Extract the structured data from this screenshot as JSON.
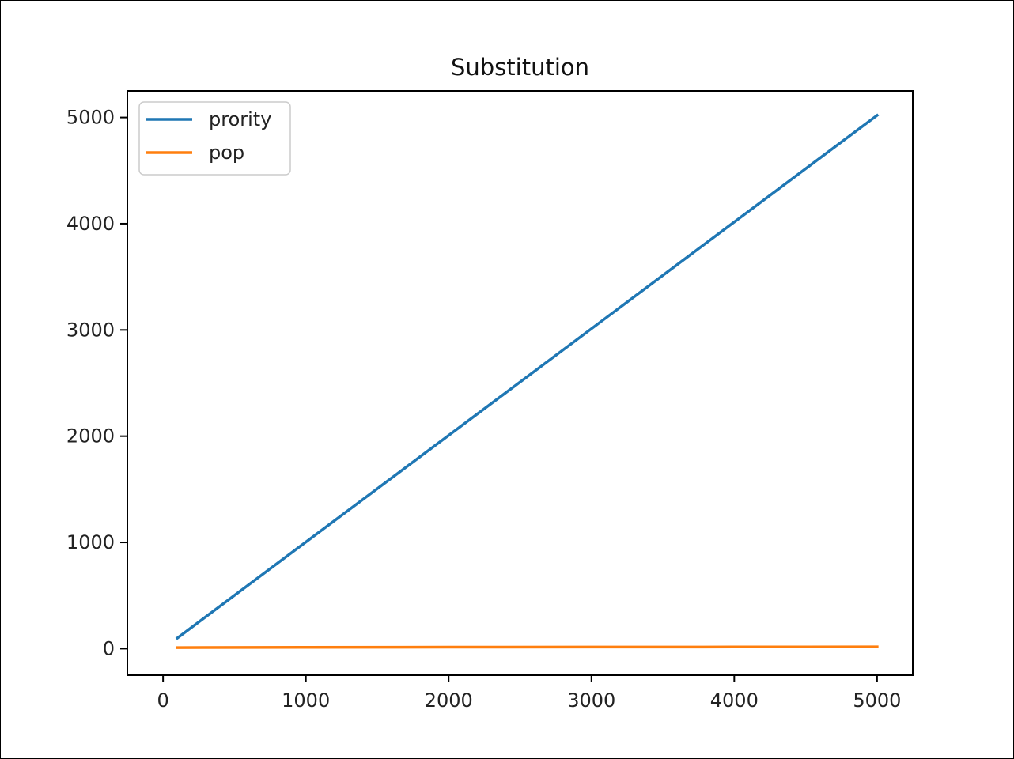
{
  "chart_data": {
    "type": "line",
    "title": "Substitution",
    "xlabel": "",
    "ylabel": "",
    "xlim": [
      -250,
      5250
    ],
    "ylim": [
      -250,
      5250
    ],
    "x_ticks": [
      0,
      1000,
      2000,
      3000,
      4000,
      5000
    ],
    "y_ticks": [
      0,
      1000,
      2000,
      3000,
      4000,
      5000
    ],
    "x_tick_labels": [
      "0",
      "1000",
      "2000",
      "3000",
      "4000",
      "5000"
    ],
    "y_tick_labels": [
      "0",
      "1000",
      "2000",
      "3000",
      "4000",
      "5000"
    ],
    "grid": false,
    "legend_position": "upper-left",
    "series": [
      {
        "name": "prority",
        "color": "#1f77b4",
        "x": [
          100,
          5000
        ],
        "y": [
          100,
          5020
        ]
      },
      {
        "name": "pop",
        "color": "#ff7f0e",
        "x": [
          100,
          1000,
          2000,
          3000,
          4000,
          5000
        ],
        "y": [
          10,
          12,
          14,
          15,
          16,
          17
        ]
      }
    ]
  }
}
